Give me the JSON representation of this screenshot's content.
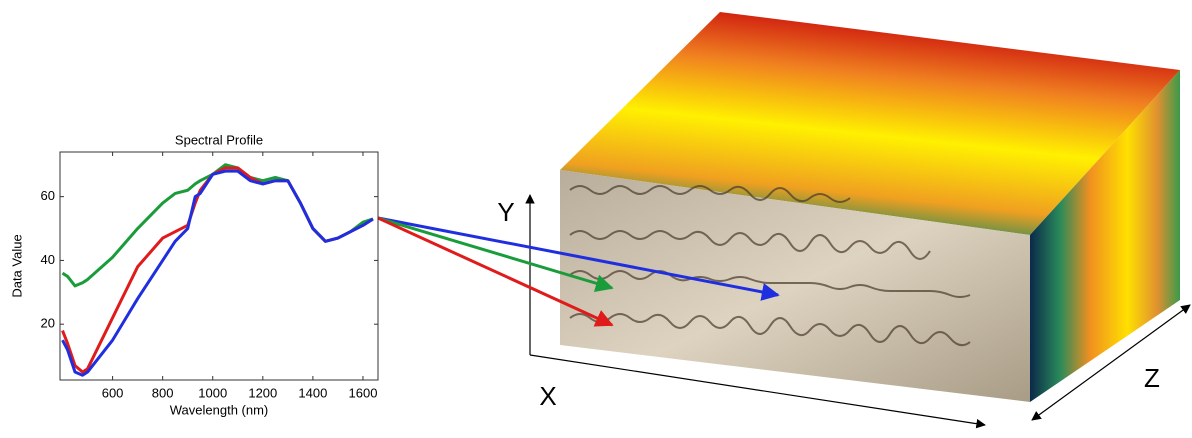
{
  "chart_data": {
    "type": "line",
    "title": "Spectral Profile",
    "x_label": "Wavelength (nm)",
    "y_label": "Data Value",
    "x": [
      400,
      420,
      450,
      480,
      500,
      600,
      700,
      800,
      850,
      900,
      930,
      950,
      1000,
      1050,
      1100,
      1150,
      1200,
      1250,
      1300,
      1350,
      1400,
      1450,
      1500,
      1550,
      1600,
      1640
    ],
    "series": [
      {
        "color": "#1a9c3a",
        "values": [
          36,
          35,
          32,
          33,
          34,
          41,
          50,
          58,
          61,
          62,
          64,
          65,
          67,
          70,
          69,
          66,
          65,
          66,
          65,
          58,
          50,
          46,
          47,
          49,
          52,
          53
        ]
      },
      {
        "color": "#e01b1b",
        "values": [
          18,
          14,
          7,
          5,
          6,
          22,
          38,
          47,
          49,
          51,
          58,
          62,
          67,
          69,
          69,
          66,
          64,
          65,
          65,
          58,
          50,
          46,
          47,
          49,
          51,
          53
        ]
      },
      {
        "color": "#1f2fe0",
        "values": [
          15,
          12,
          5,
          4,
          5,
          15,
          28,
          40,
          46,
          50,
          60,
          61,
          67,
          68,
          68,
          65,
          64,
          65,
          65,
          58,
          50,
          46,
          47,
          49,
          51,
          53
        ]
      }
    ],
    "xlim": [
      390,
      1660
    ],
    "ylim": [
      2.5,
      74
    ],
    "xticks": [
      600,
      800,
      1000,
      1200,
      1400,
      1600
    ],
    "yticks": [
      20,
      40,
      60
    ],
    "grid": false
  },
  "diagram": {
    "axes": [
      "X",
      "Y",
      "Z"
    ]
  }
}
